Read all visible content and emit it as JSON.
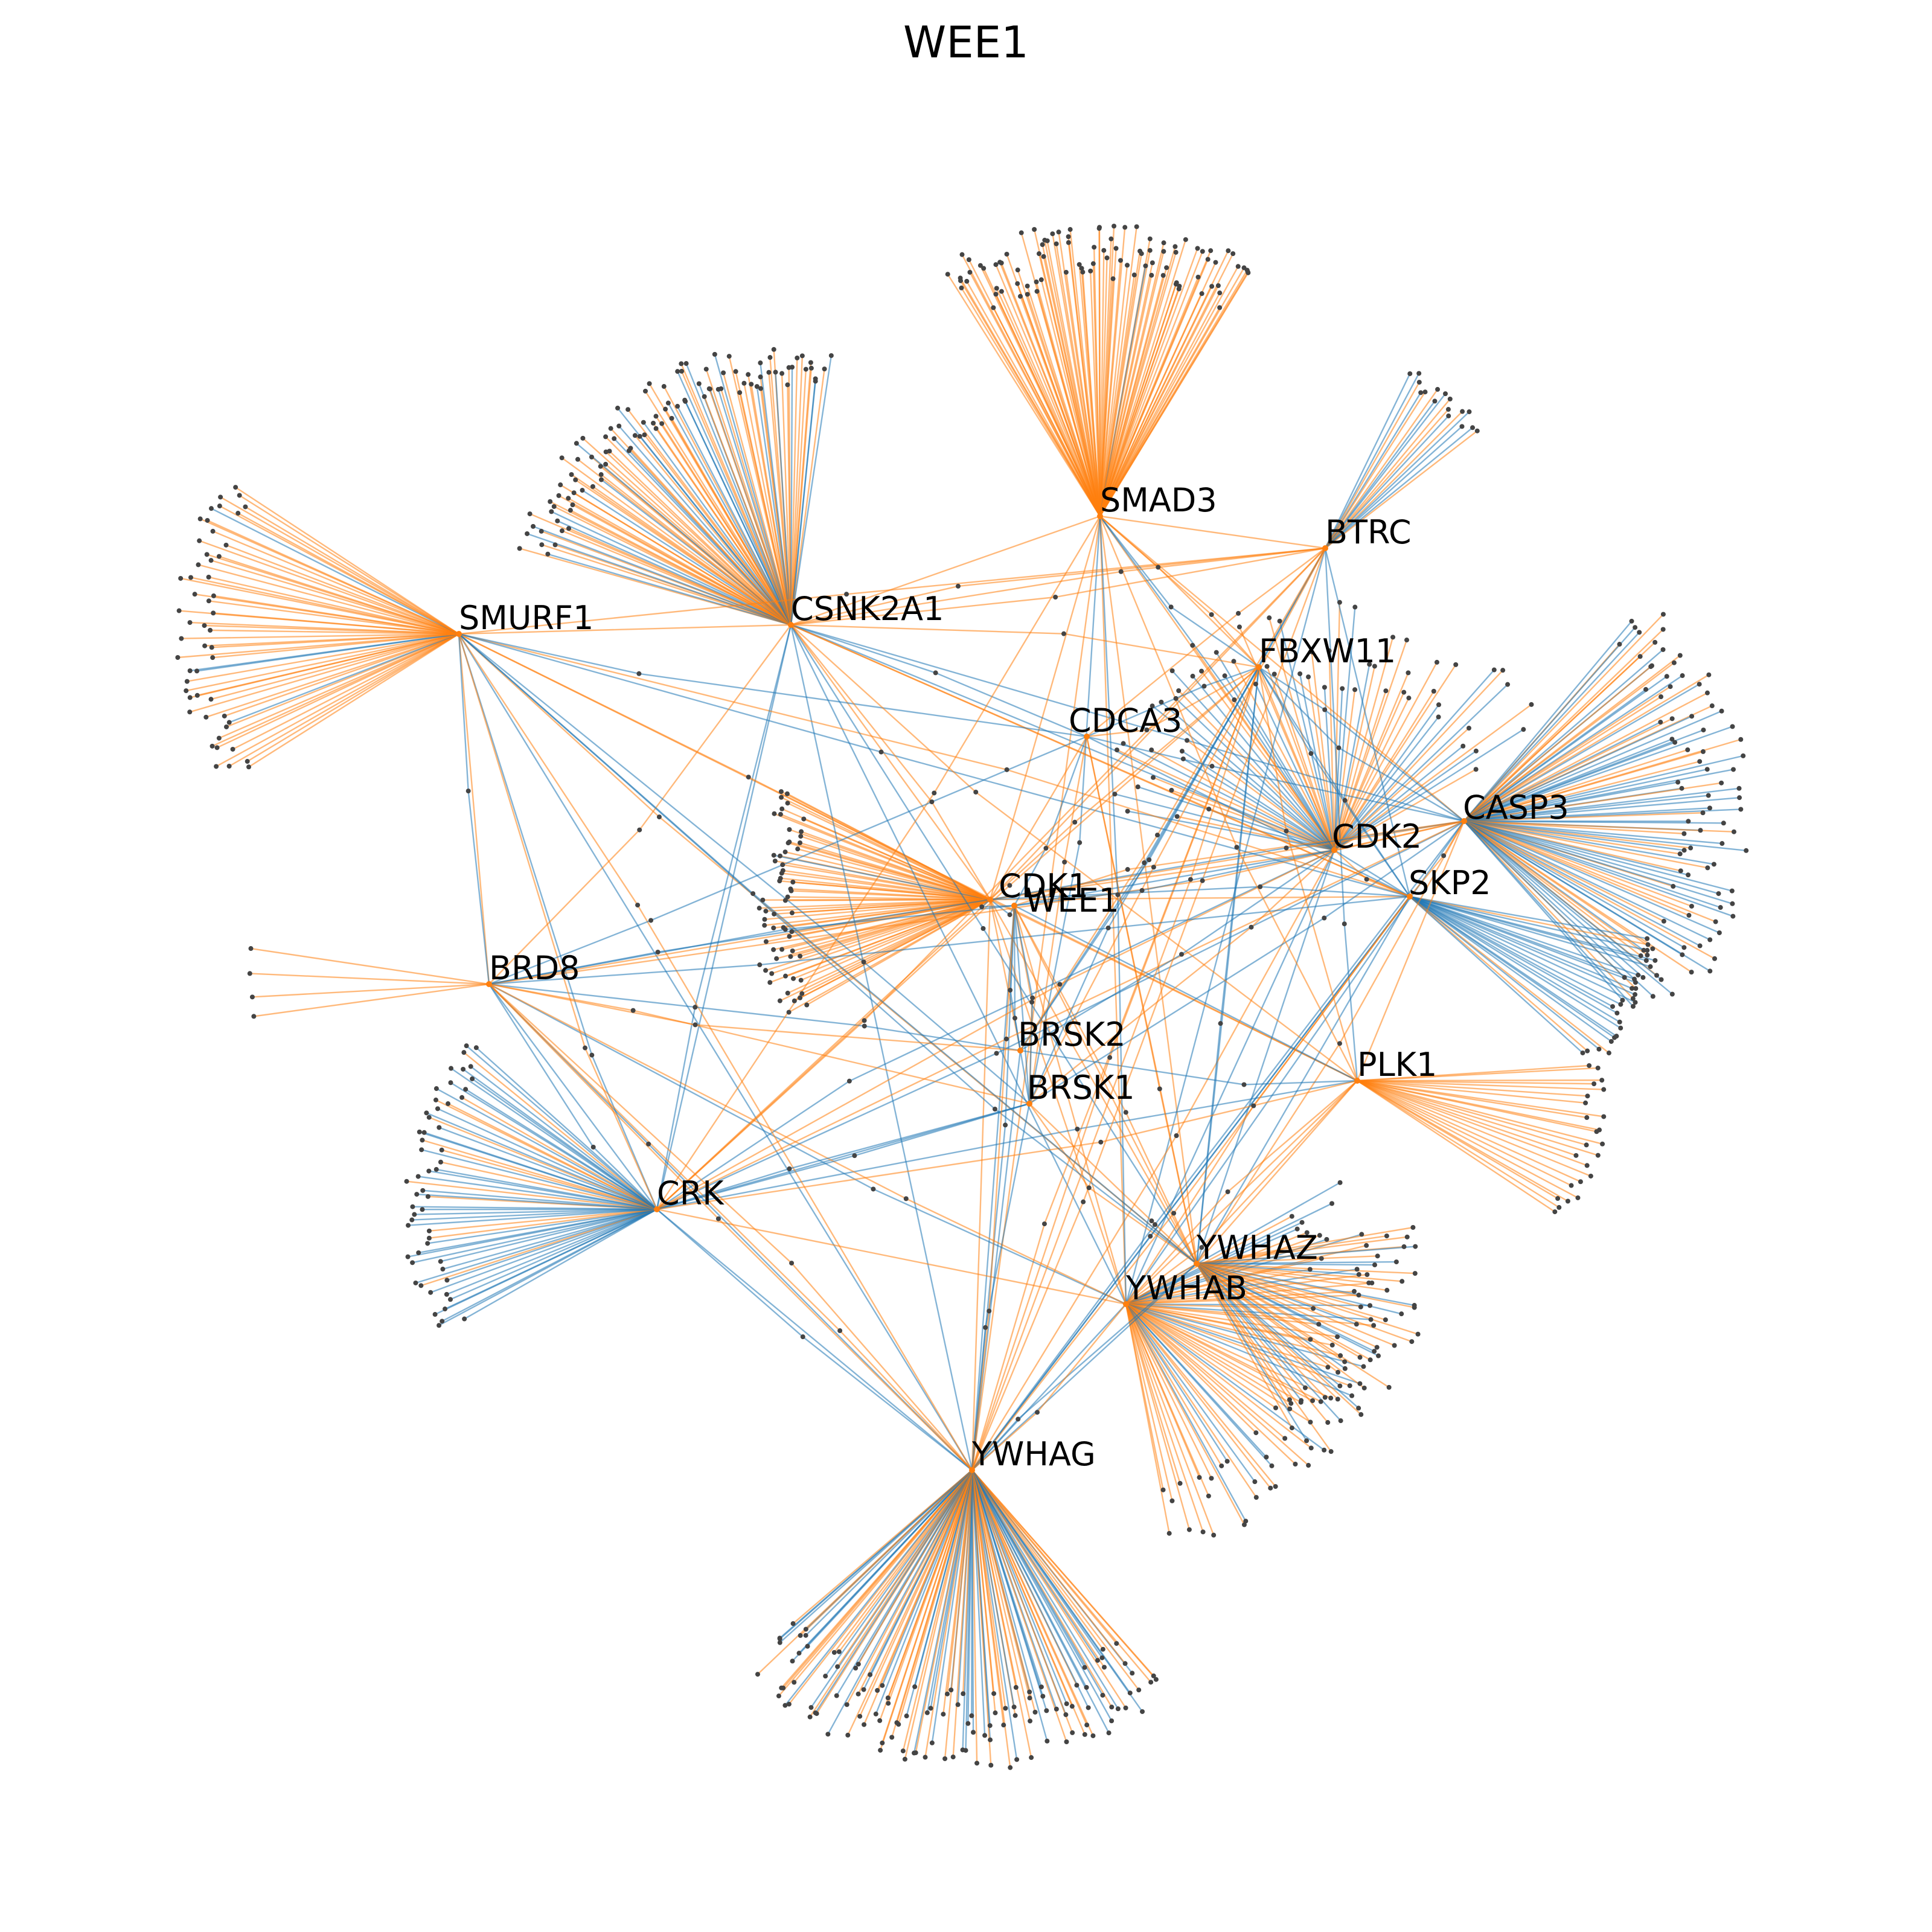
{
  "title": "WEE1",
  "colors": {
    "orange": "#ff7f0e",
    "blue": "#1f77b4",
    "leaf": "#444444",
    "hub": "#ff7f0e"
  },
  "hubs": [
    {
      "id": "WEE1",
      "label": "WEE1"
    },
    {
      "id": "CDK1",
      "label": "CDK1"
    },
    {
      "id": "CDK2",
      "label": "CDK2"
    },
    {
      "id": "CASP3",
      "label": "CASP3"
    },
    {
      "id": "SKP2",
      "label": "SKP2"
    },
    {
      "id": "SMAD3",
      "label": "SMAD3"
    },
    {
      "id": "BTRC",
      "label": "BTRC"
    },
    {
      "id": "FBXW11",
      "label": "FBXW11"
    },
    {
      "id": "CDCA3",
      "label": "CDCA3"
    },
    {
      "id": "CSNK2A1",
      "label": "CSNK2A1"
    },
    {
      "id": "SMURF1",
      "label": "SMURF1"
    },
    {
      "id": "BRD8",
      "label": "BRD8"
    },
    {
      "id": "BRSK2",
      "label": "BRSK2"
    },
    {
      "id": "BRSK1",
      "label": "BRSK1"
    },
    {
      "id": "PLK1",
      "label": "PLK1"
    },
    {
      "id": "CRK",
      "label": "CRK"
    },
    {
      "id": "YWHAZ",
      "label": "YWHAZ"
    },
    {
      "id": "YWHAB",
      "label": "YWHAB"
    },
    {
      "id": "YWHAG",
      "label": "YWHAG"
    }
  ],
  "hub_edges": [
    [
      "SMURF1",
      "CSNK2A1",
      "orange"
    ],
    [
      "SMURF1",
      "BRD8",
      "orange"
    ],
    [
      "SMURF1",
      "YWHAG",
      "blue"
    ],
    [
      "SMURF1",
      "PLK1",
      "orange"
    ],
    [
      "CSNK2A1",
      "SMAD3",
      "orange"
    ],
    [
      "CSNK2A1",
      "CDK1",
      "orange"
    ],
    [
      "CSNK2A1",
      "CDK2",
      "blue"
    ],
    [
      "CSNK2A1",
      "CASP3",
      "blue"
    ],
    [
      "CSNK2A1",
      "YWHAG",
      "blue"
    ],
    [
      "CSNK2A1",
      "YWHAB",
      "blue"
    ],
    [
      "CSNK2A1",
      "CRK",
      "blue"
    ],
    [
      "CSNK2A1",
      "SKP2",
      "orange"
    ],
    [
      "SMAD3",
      "BTRC",
      "orange"
    ],
    [
      "SMAD3",
      "CDK1",
      "orange"
    ],
    [
      "SMAD3",
      "CDK2",
      "orange"
    ],
    [
      "SMAD3",
      "YWHAB",
      "orange"
    ],
    [
      "SMAD3",
      "YWHAZ",
      "orange"
    ],
    [
      "SMAD3",
      "CASP3",
      "orange"
    ],
    [
      "SMAD3",
      "YWHAG",
      "orange"
    ],
    [
      "BTRC",
      "FBXW11",
      "blue"
    ],
    [
      "BTRC",
      "CDK1",
      "orange"
    ],
    [
      "BTRC",
      "SKP2",
      "blue"
    ],
    [
      "BTRC",
      "YWHAB",
      "blue"
    ],
    [
      "FBXW11",
      "CDK2",
      "orange"
    ],
    [
      "FBXW11",
      "YWHAZ",
      "blue"
    ],
    [
      "CDK1",
      "CDK2",
      "orange"
    ],
    [
      "CDK1",
      "CASP3",
      "orange"
    ],
    [
      "CDK1",
      "SKP2",
      "orange"
    ],
    [
      "CDK1",
      "PLK1",
      "orange"
    ],
    [
      "CDK1",
      "YWHAZ",
      "orange"
    ],
    [
      "CDK1",
      "YWHAB",
      "orange"
    ],
    [
      "CDK1",
      "YWHAG",
      "orange"
    ],
    [
      "CDK1",
      "BRD8",
      "orange"
    ],
    [
      "CDK1",
      "CRK",
      "orange"
    ],
    [
      "WEE1",
      "CDK2",
      "blue"
    ],
    [
      "WEE1",
      "PLK1",
      "blue"
    ],
    [
      "WEE1",
      "YWHAZ",
      "orange"
    ],
    [
      "WEE1",
      "YWHAB",
      "orange"
    ],
    [
      "WEE1",
      "YWHAG",
      "blue"
    ],
    [
      "WEE1",
      "BRSK1",
      "blue"
    ],
    [
      "CDK2",
      "SKP2",
      "blue"
    ],
    [
      "CDK2",
      "CASP3",
      "orange"
    ],
    [
      "CDK2",
      "YWHAZ",
      "blue"
    ],
    [
      "CDK2",
      "YWHAB",
      "blue"
    ],
    [
      "SKP2",
      "YWHAG",
      "blue"
    ],
    [
      "SKP2",
      "YWHAZ",
      "blue"
    ],
    [
      "CASP3",
      "PLK1",
      "orange"
    ],
    [
      "CASP3",
      "YWHAB",
      "blue"
    ],
    [
      "PLK1",
      "YWHAZ",
      "orange"
    ],
    [
      "PLK1",
      "YWHAB",
      "orange"
    ],
    [
      "CRK",
      "YWHAB",
      "orange"
    ],
    [
      "CRK",
      "YWHAG",
      "blue"
    ],
    [
      "CRK",
      "BRD8",
      "blue"
    ],
    [
      "CRK",
      "BRSK1",
      "blue"
    ],
    [
      "YWHAZ",
      "YWHAB",
      "orange"
    ],
    [
      "YWHAZ",
      "YWHAG",
      "blue"
    ],
    [
      "YWHAB",
      "YWHAG",
      "blue"
    ],
    [
      "BRSK2",
      "YWHAG",
      "blue"
    ],
    [
      "BRSK2",
      "CDK1",
      "orange"
    ],
    [
      "CDCA3",
      "CDK1",
      "orange"
    ],
    [
      "CDCA3",
      "SKP2",
      "blue"
    ],
    [
      "CDCA3",
      "YWHAZ",
      "orange"
    ]
  ],
  "leaf_fans": [
    {
      "hub": "SMURF1",
      "count": 52,
      "blue_ratio": 0.1
    },
    {
      "hub": "CSNK2A1",
      "count": 100,
      "blue_ratio": 0.3
    },
    {
      "hub": "SMAD3",
      "count": 95,
      "blue_ratio": 0.04
    },
    {
      "hub": "BTRC",
      "count": 16,
      "blue_ratio": 0.45
    },
    {
      "hub": "CASP3",
      "count": 92,
      "blue_ratio": 0.55
    },
    {
      "hub": "SKP2",
      "count": 24,
      "blue_ratio": 0.8
    },
    {
      "hub": "CDK1",
      "count": 60,
      "blue_ratio": 0.05
    },
    {
      "hub": "BRD8",
      "count": 4,
      "blue_ratio": 0.0
    },
    {
      "hub": "PLK1",
      "count": 24,
      "blue_ratio": 0.0
    },
    {
      "hub": "CRK",
      "count": 54,
      "blue_ratio": 0.75
    },
    {
      "hub": "YWHAB",
      "count": 64,
      "blue_ratio": 0.3
    },
    {
      "hub": "YWHAZ",
      "count": 46,
      "blue_ratio": 0.6
    },
    {
      "hub": "YWHAG",
      "count": 124,
      "blue_ratio": 0.5
    },
    {
      "hub": "CDK2",
      "count": 60,
      "blue_ratio": 0.45
    }
  ]
}
